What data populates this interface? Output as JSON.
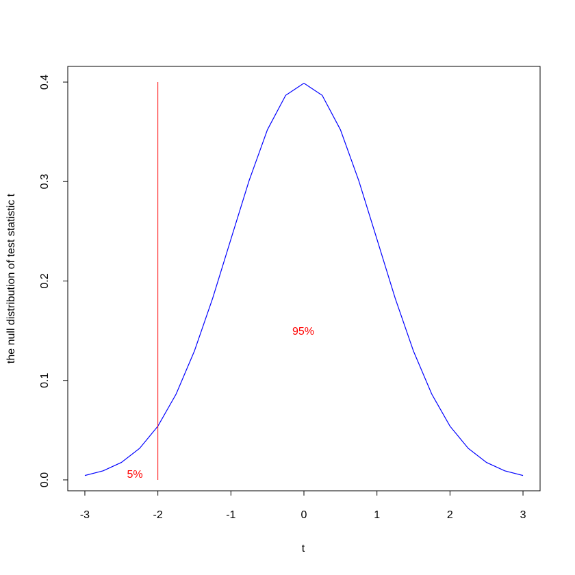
{
  "chart_data": {
    "type": "line",
    "xlabel": "t",
    "ylabel": "the null distribution of test statistic t",
    "x": [
      -3,
      -2.75,
      -2.5,
      -2.25,
      -2,
      -1.75,
      -1.5,
      -1.25,
      -1,
      -0.75,
      -0.5,
      -0.25,
      0,
      0.25,
      0.5,
      0.75,
      1,
      1.25,
      1.5,
      1.75,
      2,
      2.25,
      2.5,
      2.75,
      3
    ],
    "values": [
      0.0044,
      0.0091,
      0.0175,
      0.0317,
      0.054,
      0.0863,
      0.1295,
      0.1826,
      0.242,
      0.3011,
      0.3521,
      0.3867,
      0.3989,
      0.3867,
      0.3521,
      0.3011,
      0.242,
      0.1826,
      0.1295,
      0.0863,
      0.054,
      0.0317,
      0.0175,
      0.0091,
      0.0044
    ],
    "color": "#0000ff",
    "vline": {
      "x": -2,
      "ymin": 0,
      "ymax": 0.4,
      "color": "#ff0000"
    },
    "annotations": [
      "5%",
      "95%"
    ],
    "annotation_color": "#ff0000",
    "xlim": [
      -3.234,
      3.234
    ],
    "ylim": [
      -0.011,
      0.4158
    ],
    "xticks": [
      -3,
      -2,
      -1,
      0,
      1,
      2,
      3
    ],
    "yticks": [
      {
        "value": 0,
        "label": "0.0"
      },
      0.1,
      0.2,
      0.3,
      0.4
    ],
    "grid": false
  }
}
